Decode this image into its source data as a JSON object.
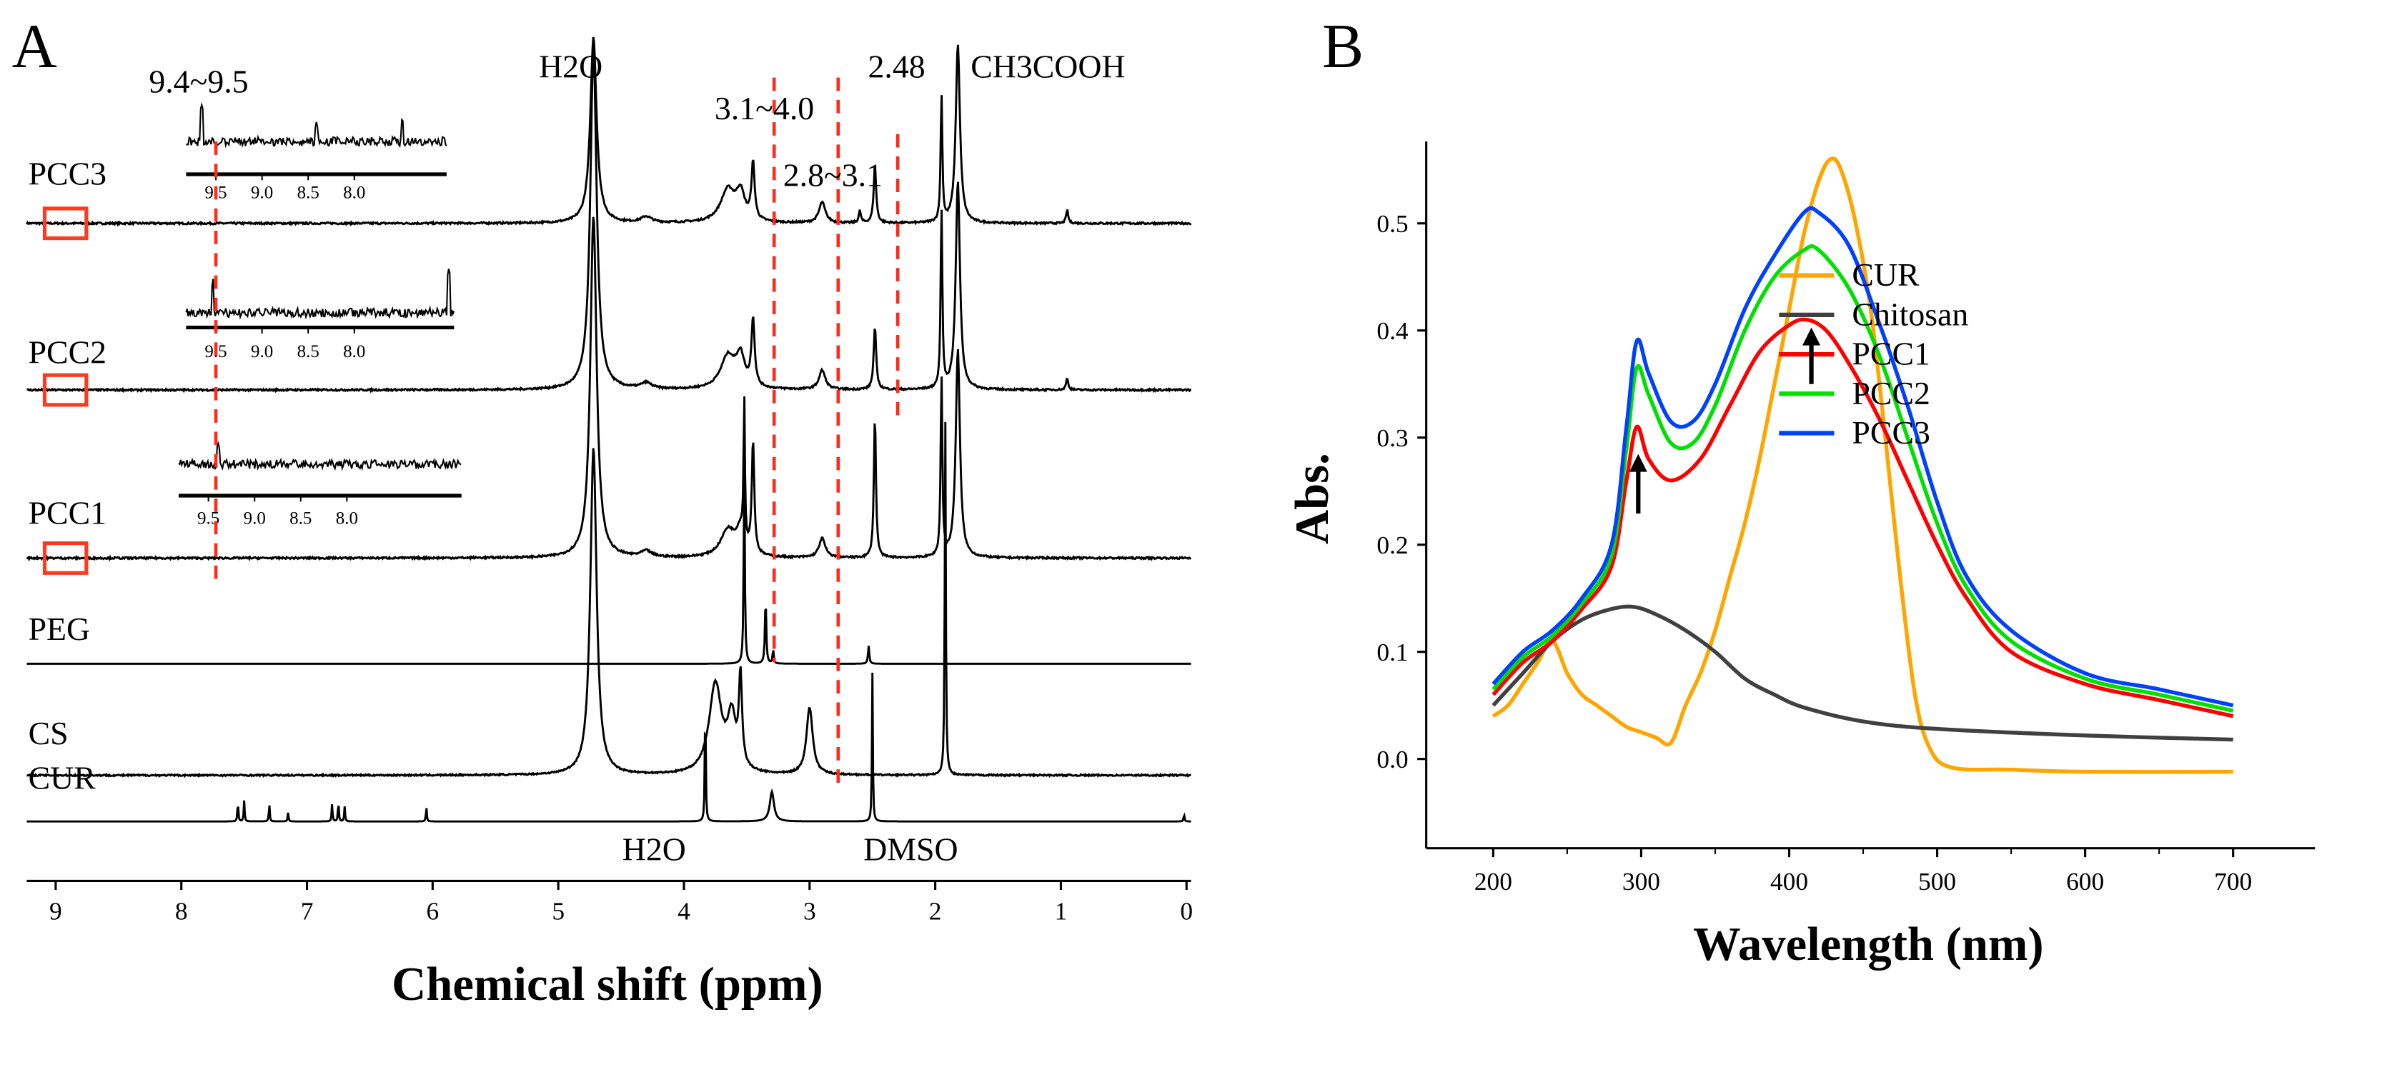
{
  "chart_data": [
    {
      "type": "line",
      "panel": "A",
      "panel_label": "A",
      "title": "",
      "xlabel": "Chemical shift (ppm)",
      "ylabel": "",
      "xlim": [
        9.7,
        0
      ],
      "xticks": [
        "9",
        "8",
        "7",
        "6",
        "5",
        "4",
        "3",
        "2",
        "1",
        "0"
      ],
      "series": [
        {
          "name": "PCC3",
          "peaks": [
            [
              4.72,
              125,
              0.03
            ],
            [
              4.3,
              4,
              0.05
            ],
            [
              3.65,
              22,
              0.07
            ],
            [
              3.55,
              18,
              0.04
            ],
            [
              3.45,
              38,
              0.015
            ],
            [
              2.9,
              14,
              0.03
            ],
            [
              2.6,
              8,
              0.01
            ],
            [
              2.48,
              38,
              0.012
            ],
            [
              1.95,
              85,
              0.008
            ],
            [
              1.82,
              120,
              0.02
            ],
            [
              0.95,
              9,
              0.01
            ]
          ]
        },
        {
          "name": "PCC2",
          "peaks": [
            [
              4.72,
              230,
              0.03
            ],
            [
              4.3,
              4,
              0.05
            ],
            [
              3.65,
              22,
              0.07
            ],
            [
              3.55,
              20,
              0.04
            ],
            [
              3.45,
              45,
              0.015
            ],
            [
              2.9,
              13,
              0.03
            ],
            [
              2.48,
              42,
              0.012
            ],
            [
              1.95,
              120,
              0.008
            ],
            [
              1.82,
              140,
              0.02
            ],
            [
              0.95,
              8,
              0.01
            ]
          ]
        },
        {
          "name": "PCC1",
          "peaks": [
            [
              4.72,
              230,
              0.03
            ],
            [
              4.3,
              4,
              0.05
            ],
            [
              3.65,
              18,
              0.07
            ],
            [
              3.55,
              16,
              0.04
            ],
            [
              3.52,
              95,
              0.006
            ],
            [
              3.45,
              75,
              0.012
            ],
            [
              2.9,
              13,
              0.03
            ],
            [
              2.48,
              95,
              0.01
            ],
            [
              1.95,
              120,
              0.008
            ],
            [
              1.82,
              140,
              0.02
            ]
          ]
        },
        {
          "name": "PEG",
          "peaks": [
            [
              3.52,
              140,
              0.005
            ],
            [
              3.35,
              45,
              0.006
            ],
            [
              3.29,
              10,
              0.005
            ],
            [
              2.53,
              12,
              0.006
            ]
          ]
        },
        {
          "name": "CS",
          "peaks": [
            [
              4.72,
              220,
              0.03
            ],
            [
              3.75,
              60,
              0.06
            ],
            [
              3.62,
              35,
              0.04
            ],
            [
              3.55,
              60,
              0.015
            ],
            [
              3.0,
              45,
              0.03
            ],
            [
              1.92,
              240,
              0.005
            ]
          ]
        },
        {
          "name": "CUR",
          "peaks": [
            [
              9.62,
              8,
              0.005
            ],
            [
              7.55,
              14,
              0.004
            ],
            [
              7.5,
              14,
              0.004
            ],
            [
              7.3,
              12,
              0.004
            ],
            [
              7.15,
              6,
              0.004
            ],
            [
              6.8,
              12,
              0.004
            ],
            [
              6.75,
              14,
              0.004
            ],
            [
              6.7,
              10,
              0.004
            ],
            [
              6.05,
              10,
              0.004
            ],
            [
              3.83,
              90,
              0.004
            ],
            [
              3.3,
              20,
              0.02
            ],
            [
              2.5,
              100,
              0.004
            ],
            [
              0.02,
              5,
              0.004
            ]
          ]
        }
      ],
      "insets": [
        {
          "for": "PCC3",
          "ticks": [
            "9.5",
            "9.0",
            "8.5",
            "8.0"
          ]
        },
        {
          "for": "PCC2",
          "ticks": [
            "9.5",
            "9.0",
            "8.5",
            "8.0"
          ]
        },
        {
          "for": "PCC1",
          "ticks": [
            "9.5",
            "9.0",
            "8.5",
            "8.0"
          ]
        }
      ],
      "reference_lines_ppm": [
        9.5,
        3.45,
        2.9,
        2.48
      ],
      "annotations": {
        "range1": "9.4~9.5",
        "range2": "3.1~4.0",
        "range3": "2.8~3.1",
        "peak": "2.48",
        "water_top": "H2O",
        "acid": "CH3COOH",
        "water_bottom": "H2O",
        "dmso": "DMSO"
      }
    },
    {
      "type": "line",
      "panel": "B",
      "panel_label": "B",
      "title": "",
      "xlabel": "Wavelength (nm)",
      "ylabel": "Abs.",
      "xlim": [
        150,
        725
      ],
      "ylim": [
        -0.05,
        0.58
      ],
      "xticks": [
        "200",
        "300",
        "400",
        "500",
        "600",
        "700"
      ],
      "yticks": [
        "0.0",
        "0.1",
        "0.2",
        "0.3",
        "0.4",
        "0.5"
      ],
      "legend_position": "top-right",
      "arrows_at_nm": [
        298,
        415
      ],
      "series": [
        {
          "name": "CUR",
          "color": "#FFA500",
          "x": [
            200,
            210,
            220,
            230,
            240,
            250,
            260,
            270,
            280,
            290,
            300,
            310,
            320,
            330,
            340,
            350,
            360,
            370,
            380,
            390,
            400,
            410,
            420,
            428,
            435,
            445,
            455,
            465,
            475,
            485,
            495,
            510,
            550,
            600,
            700
          ],
          "y": [
            0.04,
            0.05,
            0.07,
            0.09,
            0.11,
            0.08,
            0.06,
            0.05,
            0.04,
            0.03,
            0.025,
            0.02,
            0.015,
            0.05,
            0.08,
            0.12,
            0.17,
            0.22,
            0.28,
            0.35,
            0.42,
            0.49,
            0.54,
            0.56,
            0.55,
            0.5,
            0.42,
            0.3,
            0.17,
            0.06,
            0.01,
            -0.008,
            -0.01,
            -0.012,
            -0.012
          ]
        },
        {
          "name": "Chitosan",
          "color": "#404040",
          "x": [
            200,
            220,
            240,
            260,
            280,
            295,
            310,
            330,
            350,
            370,
            390,
            410,
            450,
            500,
            600,
            700
          ],
          "y": [
            0.05,
            0.08,
            0.11,
            0.13,
            0.14,
            0.142,
            0.135,
            0.12,
            0.1,
            0.075,
            0.06,
            0.048,
            0.035,
            0.028,
            0.022,
            0.018
          ]
        },
        {
          "name": "PCC1",
          "color": "#FF0000",
          "x": [
            200,
            220,
            240,
            260,
            280,
            290,
            297,
            305,
            320,
            340,
            360,
            380,
            400,
            412,
            425,
            440,
            460,
            480,
            500,
            520,
            550,
            600,
            650,
            700
          ],
          "y": [
            0.06,
            0.09,
            0.11,
            0.14,
            0.18,
            0.26,
            0.31,
            0.28,
            0.26,
            0.28,
            0.33,
            0.38,
            0.405,
            0.41,
            0.4,
            0.37,
            0.32,
            0.26,
            0.2,
            0.15,
            0.1,
            0.07,
            0.055,
            0.04
          ]
        },
        {
          "name": "PCC2",
          "color": "#00E000",
          "x": [
            200,
            220,
            240,
            260,
            280,
            290,
            297,
            305,
            320,
            335,
            350,
            370,
            390,
            410,
            420,
            440,
            460,
            480,
            500,
            520,
            550,
            600,
            650,
            700
          ],
          "y": [
            0.065,
            0.095,
            0.115,
            0.145,
            0.19,
            0.29,
            0.365,
            0.34,
            0.295,
            0.295,
            0.33,
            0.4,
            0.45,
            0.475,
            0.475,
            0.44,
            0.38,
            0.3,
            0.22,
            0.16,
            0.11,
            0.075,
            0.06,
            0.045
          ]
        },
        {
          "name": "PCC3",
          "color": "#0040FF",
          "x": [
            200,
            220,
            240,
            260,
            280,
            290,
            297,
            305,
            320,
            335,
            350,
            370,
            390,
            410,
            420,
            440,
            460,
            480,
            500,
            520,
            550,
            600,
            650,
            700
          ],
          "y": [
            0.07,
            0.1,
            0.12,
            0.15,
            0.2,
            0.31,
            0.39,
            0.36,
            0.315,
            0.315,
            0.35,
            0.42,
            0.47,
            0.51,
            0.51,
            0.48,
            0.41,
            0.33,
            0.24,
            0.17,
            0.12,
            0.08,
            0.065,
            0.05
          ]
        }
      ]
    }
  ]
}
